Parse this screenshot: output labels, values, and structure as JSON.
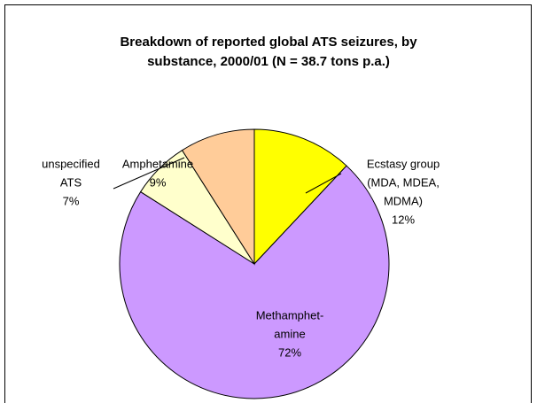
{
  "chart_data": {
    "type": "pie",
    "title": [
      "Breakdown of reported global ATS seizures, by",
      "substance, 2000/01 (N = 38.7 tons p.a.)"
    ],
    "categories": [
      [
        "Ecstasy group",
        "(MDA, MDEA,",
        "MDMA)"
      ],
      [
        "Methamphet-",
        "amine"
      ],
      [
        "unspecified",
        "ATS"
      ],
      [
        "Amphetamine"
      ]
    ],
    "values": [
      12,
      72,
      7,
      9
    ],
    "value_labels": [
      "12%",
      "72%",
      "7%",
      "9%"
    ],
    "colors": [
      "#ffff00",
      "#cc99ff",
      "#ffffcc",
      "#ffcc99"
    ]
  }
}
